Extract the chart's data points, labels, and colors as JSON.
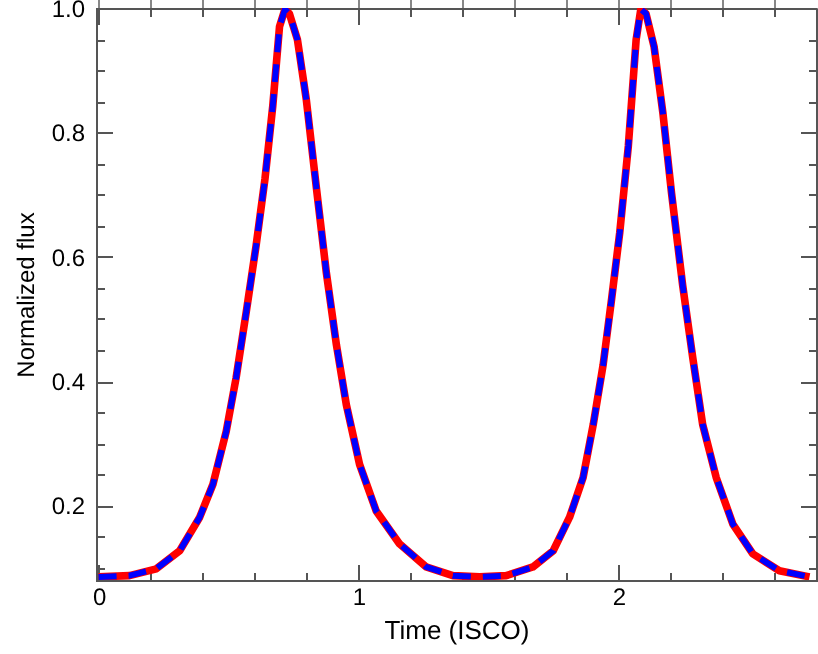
{
  "chart_data": {
    "type": "line",
    "xlabel": "Time (ISCO)",
    "ylabel": "Normalized flux",
    "x": [
      0,
      0.119,
      0.222,
      0.312,
      0.389,
      0.44,
      0.491,
      0.529,
      0.568,
      0.606,
      0.64,
      0.67,
      0.696,
      0.717,
      0.734,
      0.765,
      0.799,
      0.837,
      0.876,
      0.915,
      0.953,
      1.004,
      1.068,
      1.158,
      1.26,
      1.363,
      1.466,
      1.568,
      1.671,
      1.749,
      1.812,
      1.864,
      1.903,
      1.941,
      1.974,
      2.005,
      2.038,
      2.068,
      2.086,
      2.106,
      2.137,
      2.171,
      2.204,
      2.247,
      2.286,
      2.324,
      2.376,
      2.44,
      2.517,
      2.619,
      2.735
    ],
    "series": [
      {
        "color": "#ff0000",
        "line_style": "solid",
        "values": [
          0.085,
          0.087,
          0.098,
          0.127,
          0.181,
          0.234,
          0.319,
          0.405,
          0.511,
          0.618,
          0.725,
          0.842,
          0.97,
          0.998,
          0.991,
          0.949,
          0.853,
          0.714,
          0.575,
          0.458,
          0.362,
          0.266,
          0.191,
          0.138,
          0.101,
          0.087,
          0.085,
          0.087,
          0.101,
          0.127,
          0.181,
          0.245,
          0.33,
          0.426,
          0.533,
          0.639,
          0.778,
          0.949,
          0.998,
          0.991,
          0.938,
          0.831,
          0.703,
          0.554,
          0.437,
          0.33,
          0.245,
          0.17,
          0.122,
          0.095,
          0.085
        ]
      },
      {
        "color": "#0000ff",
        "line_style": "dashed",
        "values": [
          0.085,
          0.087,
          0.098,
          0.127,
          0.181,
          0.234,
          0.319,
          0.405,
          0.511,
          0.618,
          0.725,
          0.842,
          0.97,
          0.998,
          0.991,
          0.949,
          0.853,
          0.714,
          0.575,
          0.458,
          0.362,
          0.266,
          0.191,
          0.138,
          0.101,
          0.087,
          0.085,
          0.087,
          0.101,
          0.127,
          0.181,
          0.245,
          0.33,
          0.426,
          0.533,
          0.639,
          0.778,
          0.949,
          0.998,
          0.991,
          0.938,
          0.831,
          0.703,
          0.554,
          0.437,
          0.33,
          0.245,
          0.17,
          0.122,
          0.095,
          0.085
        ]
      }
    ],
    "xlim": [
      -0.01,
      2.76
    ],
    "xticks": [
      0,
      {
        "value": 0.2,
        "label": null
      },
      {
        "value": 0.4,
        "label": null
      },
      {
        "value": 0.6,
        "label": null
      },
      {
        "value": 0.8,
        "label": null
      },
      1,
      {
        "value": 1.2,
        "label": null
      },
      {
        "value": 1.4,
        "label": null
      },
      {
        "value": 1.6,
        "label": null
      },
      {
        "value": 1.8,
        "label": null
      },
      2,
      {
        "value": 2.2,
        "label": null
      },
      {
        "value": 2.4,
        "label": null
      },
      {
        "value": 2.6,
        "label": null
      }
    ],
    "ylim": [
      0.08,
      1.0
    ],
    "yticks": [
      {
        "value": 0.1,
        "label": null
      },
      {
        "value": 0.15,
        "label": null
      },
      0.2,
      {
        "value": 0.25,
        "label": null
      },
      {
        "value": 0.3,
        "label": null
      },
      {
        "value": 0.35,
        "label": null
      },
      0.4,
      {
        "value": 0.45,
        "label": null
      },
      {
        "value": 0.5,
        "label": null
      },
      {
        "value": 0.55,
        "label": null
      },
      0.6,
      {
        "value": 0.65,
        "label": null
      },
      {
        "value": 0.7,
        "label": null
      },
      {
        "value": 0.75,
        "label": null
      },
      0.8,
      {
        "value": 0.85,
        "label": null
      },
      {
        "value": 0.9,
        "label": null
      },
      {
        "value": 0.95,
        "label": null
      },
      {
        "value": 1.0,
        "label": "1.0"
      }
    ],
    "grid": false,
    "marker": "none"
  }
}
